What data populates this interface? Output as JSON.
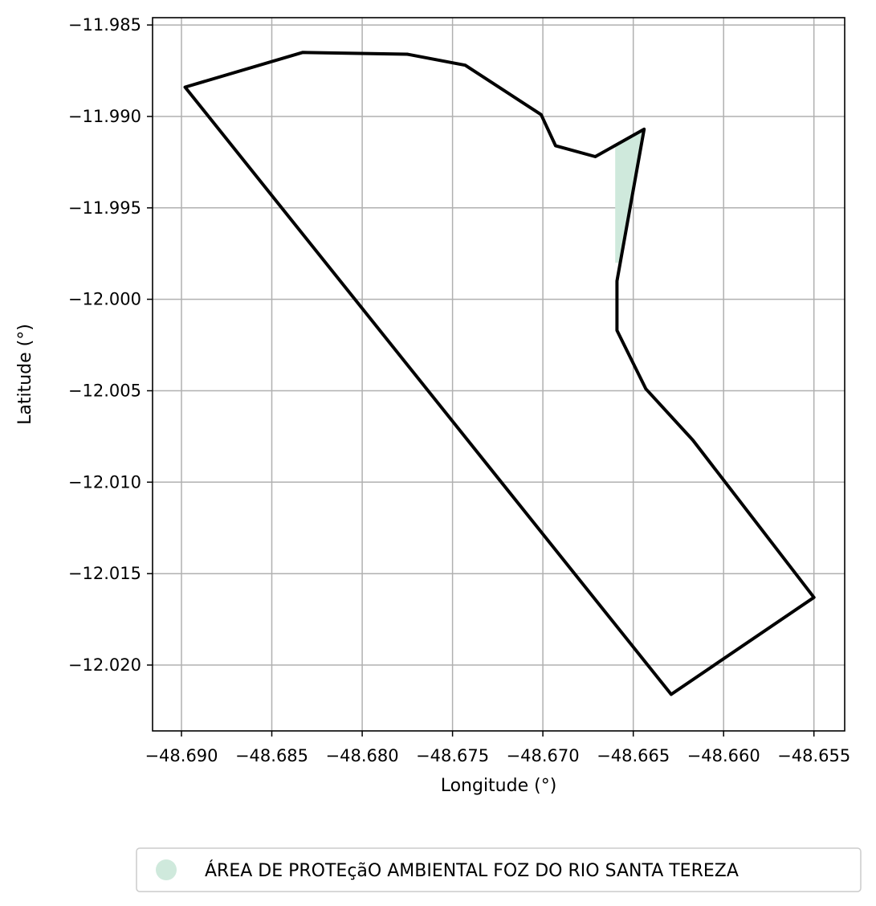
{
  "chart_data": {
    "type": "map",
    "xlabel": "Longitude (°)",
    "ylabel": "Latitude (°)",
    "xlim": [
      -48.6916,
      -48.6533
    ],
    "ylim": [
      -12.0236,
      -11.9846
    ],
    "grid": true,
    "x_ticks": [
      -48.69,
      -48.685,
      -48.68,
      -48.675,
      -48.67,
      -48.665,
      -48.66,
      -48.655
    ],
    "x_tick_labels": [
      "−48.690",
      "−48.685",
      "−48.680",
      "−48.675",
      "−48.670",
      "−48.665",
      "−48.660",
      "−48.655"
    ],
    "y_ticks": [
      -11.985,
      -11.99,
      -11.995,
      -12.0,
      -12.005,
      -12.01,
      -12.015,
      -12.02
    ],
    "y_tick_labels": [
      "−11.985",
      "−11.990",
      "−11.995",
      "−12.000",
      "−12.005",
      "−12.010",
      "−12.015",
      "−12.020"
    ],
    "boundary_outline": {
      "color": "#000000",
      "coordinates": [
        [
          -48.6898,
          -11.9884
        ],
        [
          -48.6833,
          -11.9865
        ],
        [
          -48.6775,
          -11.9866
        ],
        [
          -48.6743,
          -11.9872
        ],
        [
          -48.6701,
          -11.9899
        ],
        [
          -48.6693,
          -11.9916
        ],
        [
          -48.6671,
          -11.9922
        ],
        [
          -48.6644,
          -11.9907
        ],
        [
          -48.6659,
          -11.999
        ],
        [
          -48.6659,
          -12.0017
        ],
        [
          -48.6643,
          -12.0049
        ],
        [
          -48.6617,
          -12.0077
        ],
        [
          -48.655,
          -12.0163
        ],
        [
          -48.6629,
          -12.0216
        ],
        [
          -48.6898,
          -11.9884
        ]
      ]
    },
    "protected_area": {
      "name": "ÁREA DE PROTEçãO AMBIENTAL FOZ DO RIO SANTA TEREZA",
      "color": "#cfe9dc",
      "coordinates": [
        [
          -48.666,
          -11.9916
        ],
        [
          -48.6644,
          -11.9907
        ],
        [
          -48.6658,
          -11.998
        ],
        [
          -48.666,
          -11.998
        ],
        [
          -48.666,
          -11.9916
        ]
      ]
    },
    "legend": {
      "placement": "bottom-center",
      "entries": [
        "ÁREA DE PROTEçãO AMBIENTAL FOZ DO RIO SANTA TEREZA"
      ]
    }
  }
}
